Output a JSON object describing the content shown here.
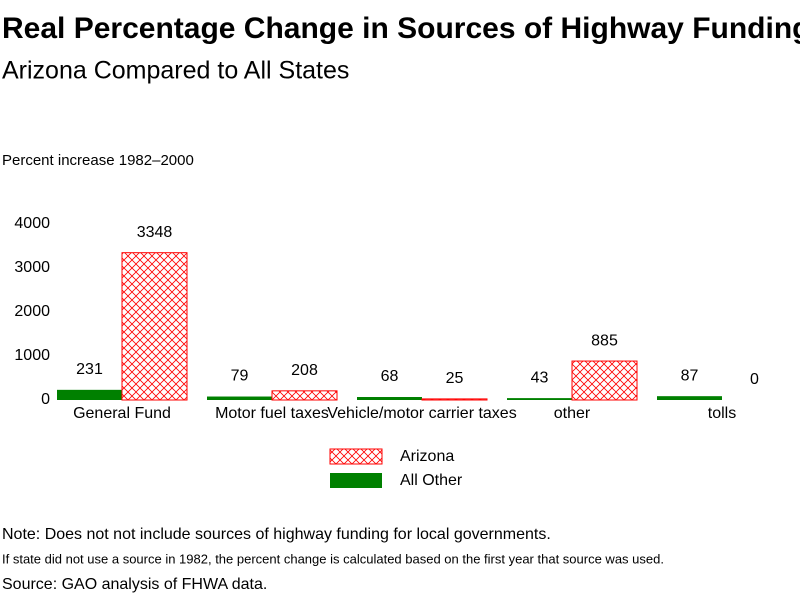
{
  "chart_data": {
    "type": "bar",
    "title": "Real Percentage Change in Sources of Highway Funding",
    "subtitle": "Arizona Compared to All States",
    "y_label": "Percent increase 1982–2000",
    "categories": [
      "General Fund",
      "Motor fuel taxes",
      "Vehicle/motor carrier taxes",
      "other",
      "tolls"
    ],
    "series": [
      {
        "name": "All Other",
        "color": "#008000",
        "values": [
          231,
          79,
          68,
          43,
          87
        ]
      },
      {
        "name": "Arizona",
        "color": "#ff0000",
        "hatch": true,
        "values": [
          3348,
          208,
          25,
          885,
          0
        ]
      }
    ],
    "ylim": [
      0,
      4000
    ],
    "yticks": [
      0,
      1000,
      2000,
      3000,
      4000
    ],
    "grid": false,
    "notes": [
      "Note: Does not not include sources of highway funding for local governments.",
      "If state did not use a source in 1982, the percent change is calculated based on the first year that source was used.",
      "Source: GAO analysis of FHWA data."
    ]
  }
}
